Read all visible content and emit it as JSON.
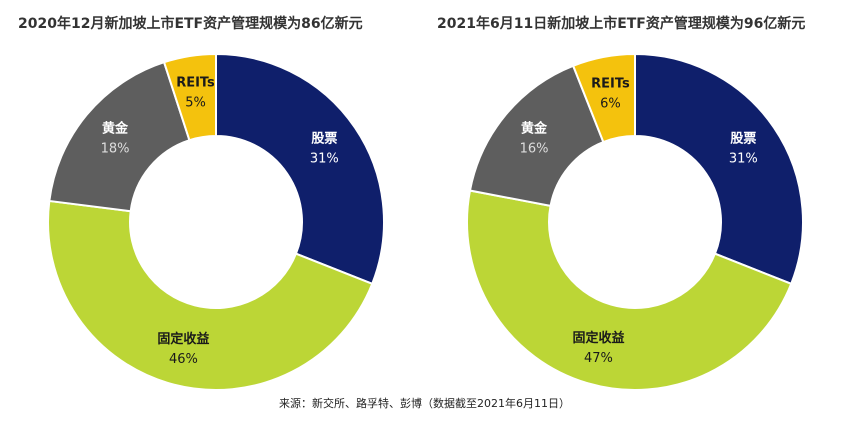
{
  "colors": {
    "股票": "#0f1f6b",
    "固定收益": "#bcd636",
    "黄金": "#5e5e5e",
    "REITs": "#f4c20d"
  },
  "chart_data": [
    {
      "type": "pie",
      "title": "2020年12月新加坡上市ETF资产管理规模为86亿新元",
      "categories": [
        "股票",
        "固定收益",
        "黄金",
        "REITs"
      ],
      "values": [
        31,
        46,
        18,
        5
      ],
      "labels": [
        "31%",
        "46%",
        "18%",
        "5%"
      ]
    },
    {
      "type": "pie",
      "title": "2021年6月11日新加坡上市ETF资产管理规模为96亿新元",
      "categories": [
        "股票",
        "固定收益",
        "黄金",
        "REITs"
      ],
      "values": [
        31,
        47,
        16,
        6
      ],
      "labels": [
        "31%",
        "47%",
        "16%",
        "6%"
      ]
    }
  ],
  "source": "来源：新交所、路孚特、彭博（数据截至2021年6月11日）"
}
